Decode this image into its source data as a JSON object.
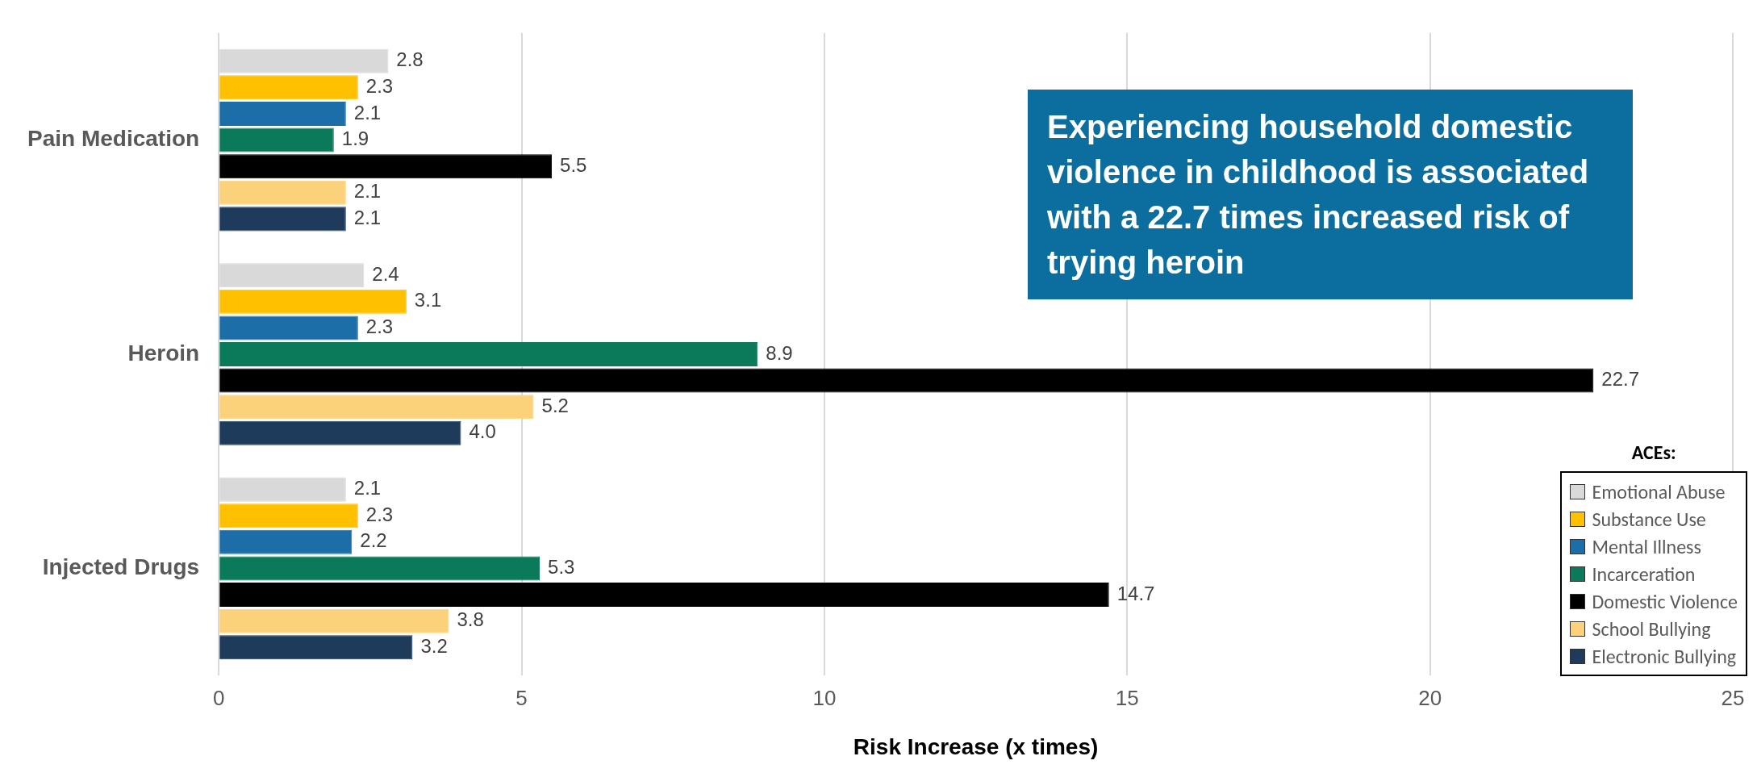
{
  "chart_data": {
    "type": "bar",
    "orientation": "horizontal",
    "xlabel": "Risk Increase (x times)",
    "legend_title": "ACEs:",
    "categories": [
      "Pain Medication",
      "Heroin",
      "Injected Drugs"
    ],
    "series": [
      {
        "name": "Emotional Abuse",
        "color": "#d9d9d9",
        "values": [
          2.8,
          2.4,
          2.1
        ],
        "value_labels": [
          "2.8",
          "2.4",
          "2.1"
        ]
      },
      {
        "name": "Substance Use",
        "color": "#ffc000",
        "values": [
          2.3,
          3.1,
          2.3
        ],
        "value_labels": [
          "2.3",
          "3.1",
          "2.3"
        ]
      },
      {
        "name": "Mental Illness",
        "color": "#1b6ea8",
        "values": [
          2.1,
          2.3,
          2.2
        ],
        "value_labels": [
          "2.1",
          "2.3",
          "2.2"
        ]
      },
      {
        "name": "Incarceration",
        "color": "#0b7a5a",
        "values": [
          1.9,
          8.9,
          5.3
        ],
        "value_labels": [
          "1.9",
          "8.9",
          "5.3"
        ]
      },
      {
        "name": "Domestic Violence",
        "color": "#000000",
        "values": [
          5.5,
          22.7,
          14.7
        ],
        "value_labels": [
          "5.5",
          "22.7",
          "14.7"
        ]
      },
      {
        "name": "School Bullying",
        "color": "#fbd27a",
        "values": [
          2.1,
          5.2,
          3.8
        ],
        "value_labels": [
          "2.1",
          "5.2",
          "3.8"
        ]
      },
      {
        "name": "Electronic Bullying",
        "color": "#1f3b5c",
        "values": [
          2.1,
          4.0,
          3.2
        ],
        "value_labels": [
          "2.1",
          "4.0",
          "3.2"
        ]
      }
    ],
    "xlim": [
      0,
      25
    ],
    "xticks": [
      0,
      5,
      10,
      15,
      20,
      25
    ],
    "grid": "x",
    "legend": "bottom right",
    "annotations": [
      "Experiencing household domestic violence in childhood is associated with a 22.7 times increased risk of trying heroin"
    ]
  }
}
